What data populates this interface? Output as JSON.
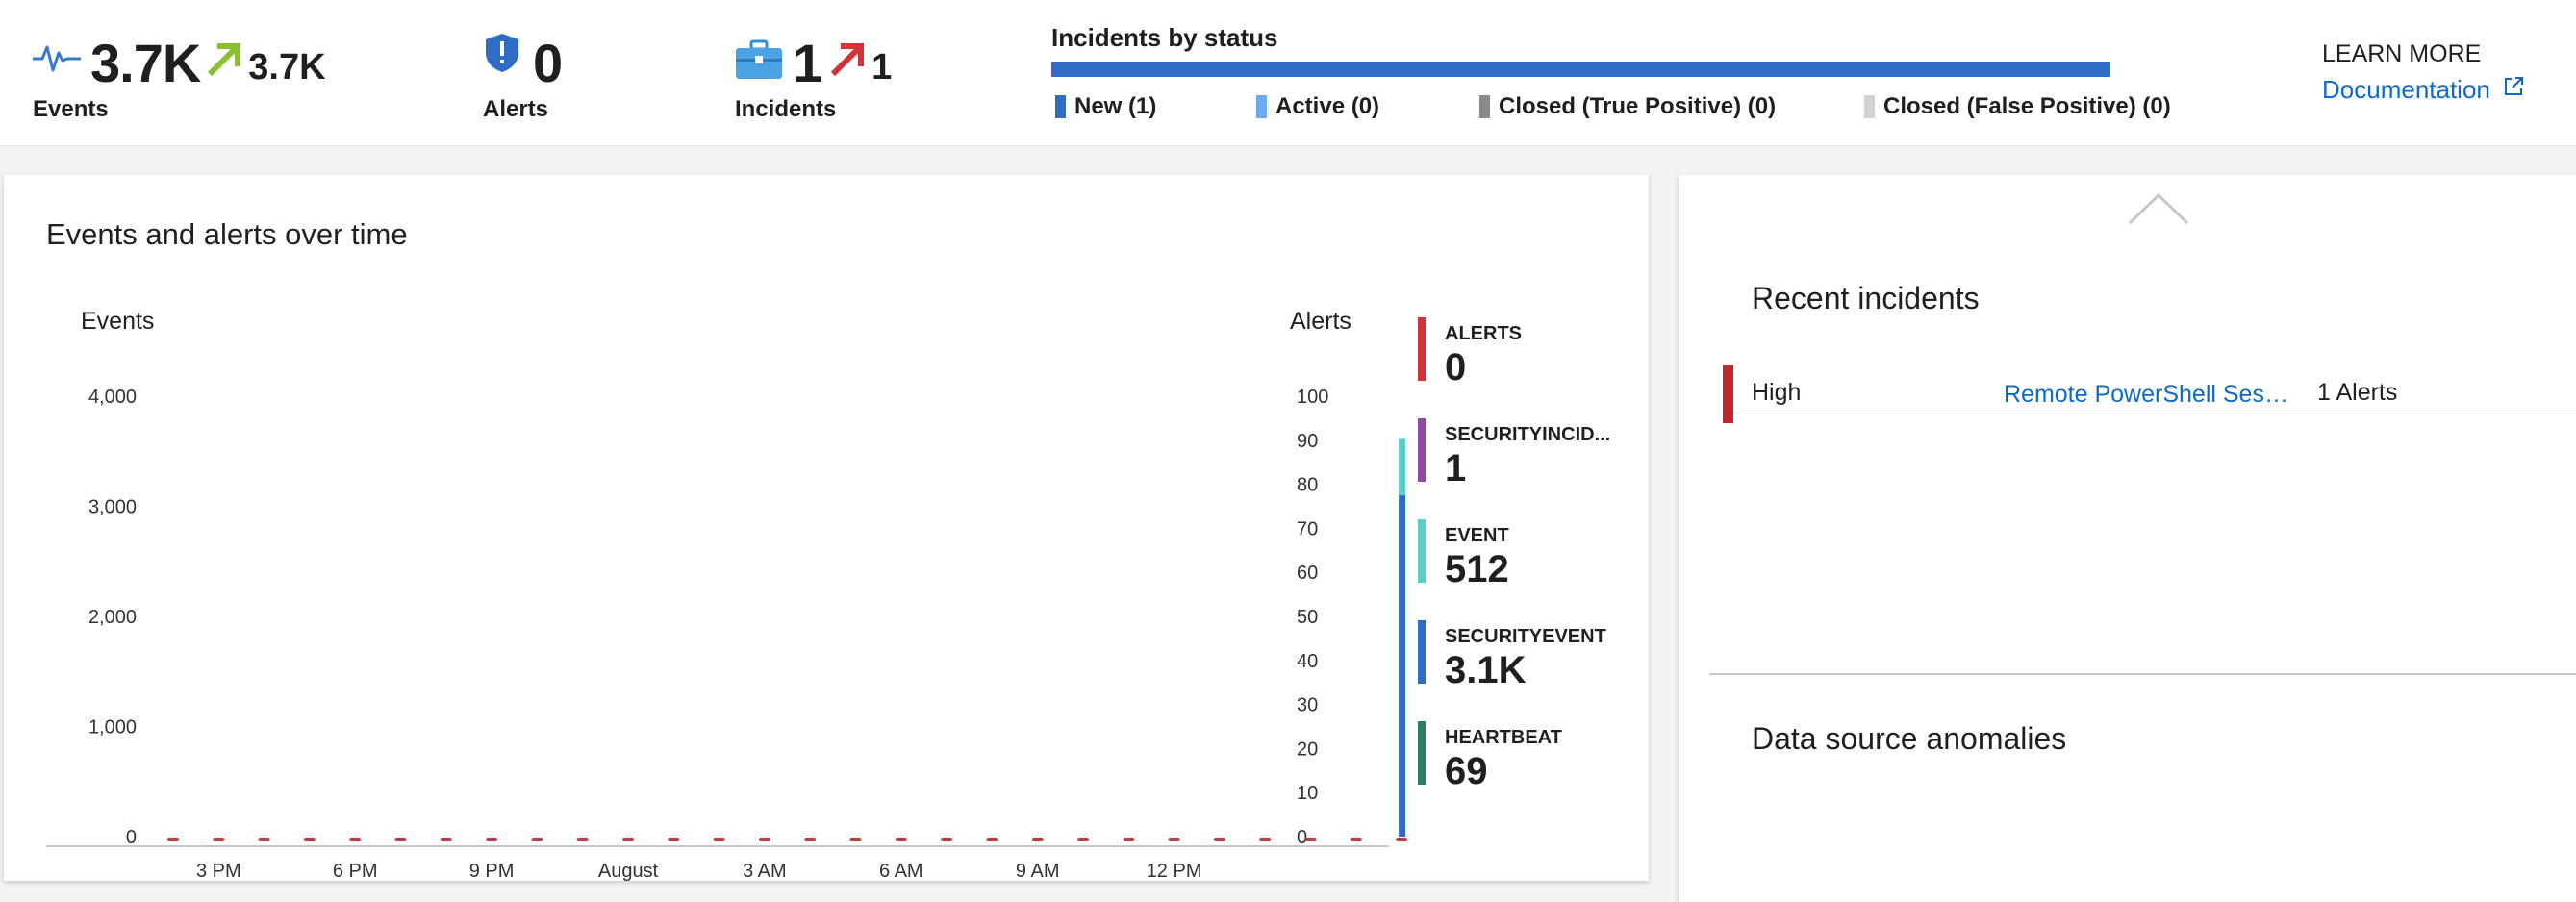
{
  "summary": {
    "events": {
      "value": "3.7K",
      "delta": "3.7K",
      "label": "Events",
      "icon": "heartbeat-icon",
      "delta_icon": "trend-up-arrow-icon",
      "delta_color": "#8cbf2f"
    },
    "alerts": {
      "value": "0",
      "label": "Alerts",
      "icon": "shield-alert-icon"
    },
    "incidents": {
      "value": "1",
      "delta": "1",
      "label": "Incidents",
      "icon": "briefcase-icon",
      "delta_icon": "trend-up-arrow-icon",
      "delta_color": "#d13438"
    }
  },
  "incidents_by_status": {
    "title": "Incidents by status",
    "items": [
      {
        "label": "New (1)",
        "color": "#2f6cc6"
      },
      {
        "label": "Active (0)",
        "color": "#6aabef"
      },
      {
        "label": "Closed (True Positive) (0)",
        "color": "#8a8a8a"
      },
      {
        "label": "Closed (False Positive) (0)",
        "color": "#d2d2d2"
      }
    ]
  },
  "learn_more": {
    "heading": "LEARN MORE",
    "link": "Documentation",
    "icon": "external-link-icon"
  },
  "events_alerts_chart": {
    "title": "Events and alerts over time",
    "left_axis_title": "Events",
    "right_axis_title": "Alerts"
  },
  "chart_data": {
    "type": "bar",
    "title": "Events and alerts over time",
    "x_tick_labels": [
      "3 PM",
      "6 PM",
      "9 PM",
      "August",
      "3 AM",
      "6 AM",
      "9 AM",
      "12 PM"
    ],
    "left_axis": {
      "label": "Events",
      "ylim": [
        0,
        4000
      ],
      "ticks": [
        "0",
        "1,000",
        "2,000",
        "3,000",
        "4,000"
      ]
    },
    "right_axis": {
      "label": "Alerts",
      "ylim": [
        0,
        100
      ],
      "ticks": [
        "0",
        "10",
        "20",
        "30",
        "40",
        "50",
        "60",
        "70",
        "80",
        "90",
        "100"
      ]
    },
    "bar_slot": 27,
    "slot_count": 28,
    "series": [
      {
        "name": "SECURITYEVENT",
        "color": "#2f6cc6",
        "value": 3100
      },
      {
        "name": "EVENT",
        "color": "#58d0c8",
        "value": 512
      }
    ],
    "alert_points": {
      "color": "#d13438",
      "value": 0,
      "count": 27
    },
    "legend": [
      {
        "name": "ALERTS",
        "value": "0",
        "color": "#d13438"
      },
      {
        "name": "SECURITYINCID...",
        "value": "1",
        "color": "#8e4aa1"
      },
      {
        "name": "EVENT",
        "value": "512",
        "color": "#58d0c8"
      },
      {
        "name": "SECURITYEVENT",
        "value": "3.1K",
        "color": "#2f6cc6"
      },
      {
        "name": "HEARTBEAT",
        "value": "69",
        "color": "#2c7d62"
      }
    ],
    "grid": false
  },
  "recent_incidents": {
    "title": "Recent incidents",
    "rows": [
      {
        "severity": "High",
        "title": "Remote PowerShell Sessi...",
        "alerts": "1 Alerts",
        "severity_color": "#c4262e"
      }
    ]
  },
  "data_source_anomalies": {
    "title": "Data source anomalies"
  }
}
